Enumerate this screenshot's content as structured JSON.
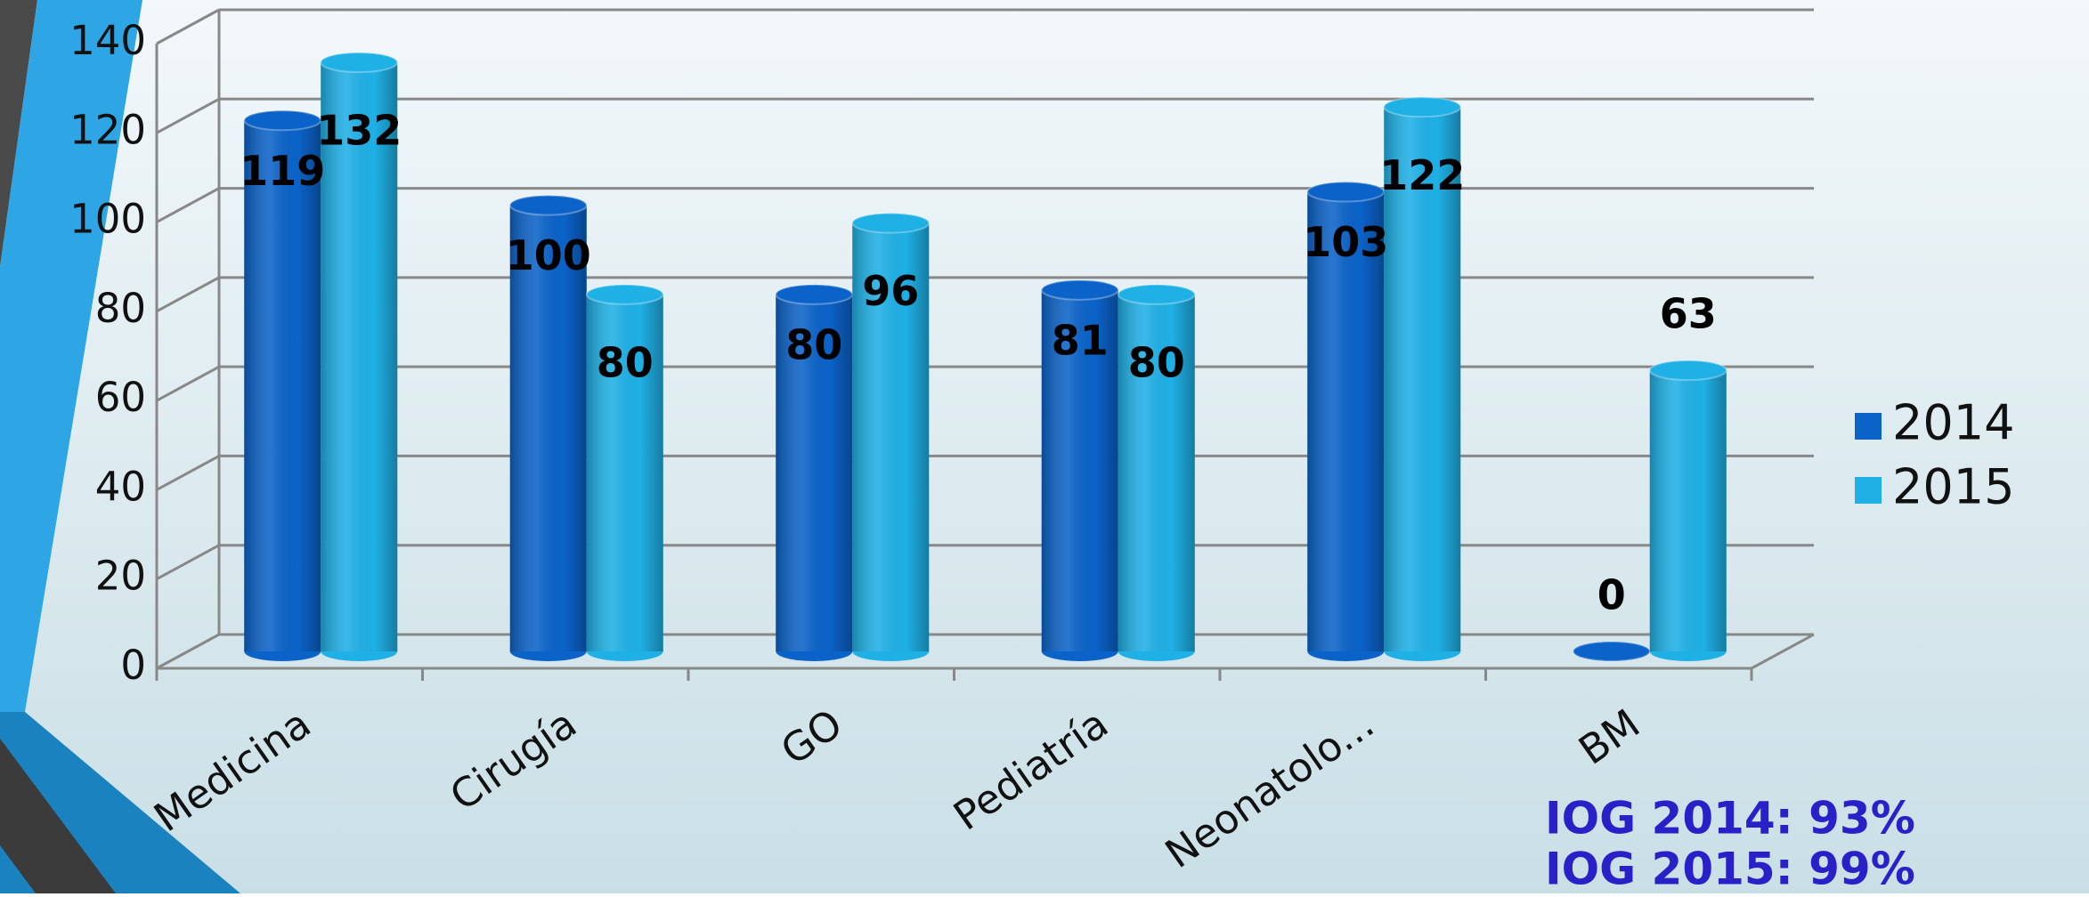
{
  "chart_data": {
    "type": "bar3d",
    "categories": [
      "Medicina",
      "Cirugía",
      "GO",
      "Pediatría",
      "Neonatolo...",
      "BM"
    ],
    "series": [
      {
        "name": "2014",
        "color": "#0b63c9",
        "values": [
          119,
          100,
          80,
          81,
          103,
          0
        ]
      },
      {
        "name": "2015",
        "color": "#1fb0e6",
        "values": [
          132,
          80,
          96,
          80,
          122,
          63
        ]
      }
    ],
    "ylim": [
      0,
      140
    ],
    "yticks": [
      0,
      20,
      40,
      60,
      80,
      100,
      120,
      140
    ],
    "grid": true,
    "legend": "right",
    "annotations": [
      "IOG 2014: 93%",
      "IOG 2015: 99%"
    ]
  }
}
